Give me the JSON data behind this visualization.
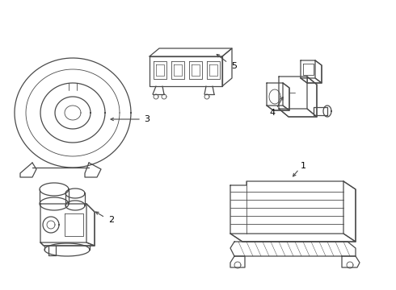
{
  "bg_color": "#ffffff",
  "line_color": "#4a4a4a",
  "lw": 0.9,
  "tlw": 0.6,
  "fig_width": 4.9,
  "fig_height": 3.6,
  "dpi": 100
}
